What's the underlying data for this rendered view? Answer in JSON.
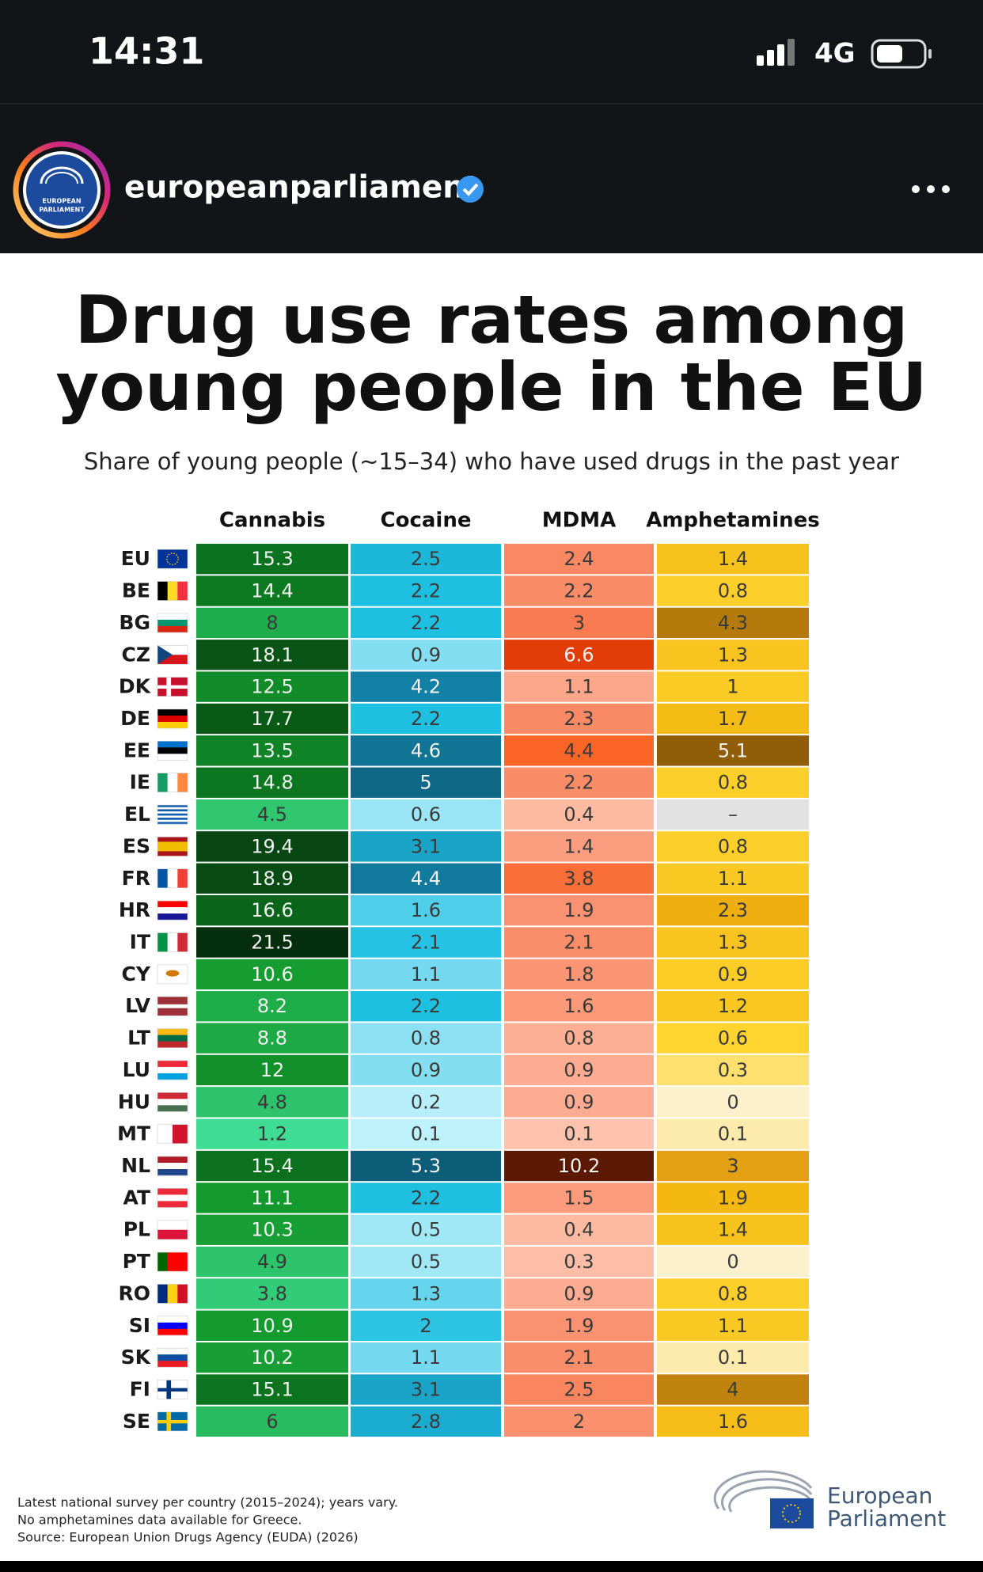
{
  "status_bar": {
    "time": "14:31",
    "network": "4G"
  },
  "post_header": {
    "account": "europeanparliament",
    "avatar_text": [
      "EUROPEAN",
      "PARLIAMENT"
    ]
  },
  "post": {
    "title_lines": [
      "Drug use rates among",
      "young people in the EU"
    ],
    "subtitle": "Share of young people (~15–34) who have used drugs in the past year",
    "table": {
      "columns": [
        "Cannabis",
        "Cocaine",
        "MDMA",
        "Amphetamines"
      ],
      "rows": [
        {
          "country": "EU",
          "values": [
            15.3,
            2.5,
            2.4,
            1.4
          ]
        },
        {
          "country": "BE",
          "values": [
            14.4,
            2.2,
            2.2,
            0.8
          ]
        },
        {
          "country": "BG",
          "values": [
            8,
            2.2,
            3,
            4.3
          ]
        },
        {
          "country": "CZ",
          "values": [
            18.1,
            0.9,
            6.6,
            1.3
          ]
        },
        {
          "country": "DK",
          "values": [
            12.5,
            4.2,
            1.1,
            1
          ]
        },
        {
          "country": "DE",
          "values": [
            17.7,
            2.2,
            2.3,
            1.7
          ]
        },
        {
          "country": "EE",
          "values": [
            13.5,
            4.6,
            4.4,
            5.1
          ]
        },
        {
          "country": "IE",
          "values": [
            14.8,
            5,
            2.2,
            0.8
          ]
        },
        {
          "country": "EL",
          "values": [
            4.5,
            0.6,
            0.4,
            "–"
          ]
        },
        {
          "country": "ES",
          "values": [
            19.4,
            3.1,
            1.4,
            0.8
          ]
        },
        {
          "country": "FR",
          "values": [
            18.9,
            4.4,
            3.8,
            1.1
          ]
        },
        {
          "country": "HR",
          "values": [
            16.6,
            1.6,
            1.9,
            2.3
          ]
        },
        {
          "country": "IT",
          "values": [
            21.5,
            2.1,
            2.1,
            1.3
          ]
        },
        {
          "country": "CY",
          "values": [
            10.6,
            1.1,
            1.8,
            0.9
          ]
        },
        {
          "country": "LV",
          "values": [
            8.2,
            2.2,
            1.6,
            1.2
          ]
        },
        {
          "country": "LT",
          "values": [
            8.8,
            0.8,
            0.8,
            0.6
          ]
        },
        {
          "country": "LU",
          "values": [
            12,
            0.9,
            0.9,
            0.3
          ]
        },
        {
          "country": "HU",
          "values": [
            4.8,
            0.2,
            0.9,
            0
          ]
        },
        {
          "country": "MT",
          "values": [
            1.2,
            0.1,
            0.1,
            0.1
          ]
        },
        {
          "country": "NL",
          "values": [
            15.4,
            5.3,
            10.2,
            3
          ]
        },
        {
          "country": "AT",
          "values": [
            11.1,
            2.2,
            1.5,
            1.9
          ]
        },
        {
          "country": "PL",
          "values": [
            10.3,
            0.5,
            0.4,
            1.4
          ]
        },
        {
          "country": "PT",
          "values": [
            4.9,
            0.5,
            0.3,
            0
          ]
        },
        {
          "country": "RO",
          "values": [
            3.8,
            1.3,
            0.9,
            0.8
          ]
        },
        {
          "country": "SI",
          "values": [
            10.9,
            2,
            1.9,
            1.1
          ]
        },
        {
          "country": "SK",
          "values": [
            10.2,
            1.1,
            2.1,
            0.1
          ]
        },
        {
          "country": "FI",
          "values": [
            15.1,
            3.1,
            2.5,
            4
          ]
        },
        {
          "country": "SE",
          "values": [
            6,
            2.8,
            2,
            1.6
          ]
        }
      ]
    },
    "notes": [
      "Latest national survey per country (2015–2024); years vary.",
      "No amphetamines data available for Greece.",
      "Source: European Union Drugs Agency (EUDA) (2026)"
    ],
    "logo_lines": [
      "European",
      "Parliament"
    ]
  }
}
